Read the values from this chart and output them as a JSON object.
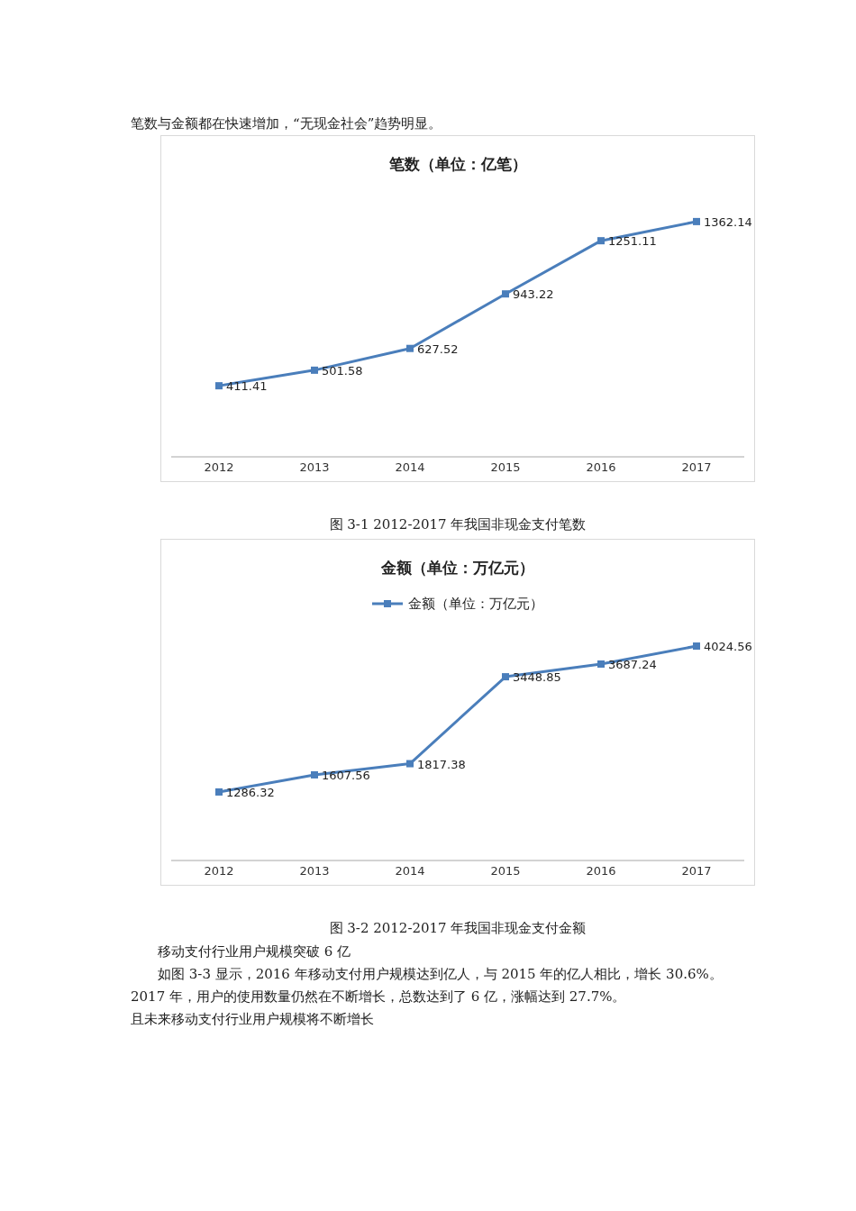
{
  "chart_data": [
    {
      "type": "line",
      "title": "笔数（单位：亿笔）",
      "categories": [
        "2012",
        "2013",
        "2014",
        "2015",
        "2016",
        "2017"
      ],
      "series": [
        {
          "color": "#4a7ebb",
          "values": [
            411.41,
            501.58,
            627.52,
            943.22,
            1251.11,
            1362.14
          ]
        }
      ],
      "data_labels": true,
      "marker": "square",
      "legend": false,
      "annotations": [
        "笔数与金额都在快速增加，“无现金社会”趋势明显。",
        "图 3-1   2012-2017 年我国非现金支付笔数"
      ]
    },
    {
      "type": "line",
      "title": "金额（单位：万亿元）",
      "categories": [
        "2012",
        "2013",
        "2014",
        "2015",
        "2016",
        "2017"
      ],
      "series": [
        {
          "name": "金额（单位：万亿元）",
          "color": "#4a7ebb",
          "values": [
            1286.32,
            1607.56,
            1817.38,
            3448.85,
            3687.24,
            4024.56
          ]
        }
      ],
      "data_labels": true,
      "marker": "square",
      "legend": "top",
      "annotations": [
        "图 3-2   2012-2017 年我国非现金支付金额",
        "移动支付行业用户规模突破 6 亿",
        "如图 3-3 显示，2016 年移动支付用户规模达到亿人，与 2015 年的亿人相比，增长 30.6%。2017 年，用户的使用数量仍然在不断增长，总数达到了 6 亿，涨幅达到 27.7%。",
        "且未来移动支付行业用户规模将不断增长"
      ]
    }
  ]
}
